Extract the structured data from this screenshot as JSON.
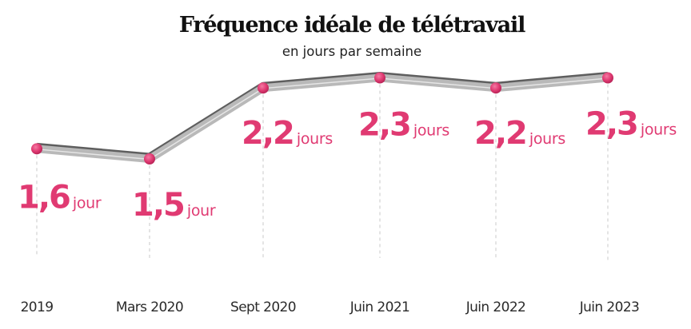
{
  "chart_data": {
    "type": "line",
    "title": "Fréquence idéale de télétravail",
    "subtitle": "en jours par semaine",
    "xlabel": "",
    "ylabel": "",
    "ylim": [
      1.0,
      2.5
    ],
    "grid": false,
    "legend": "none",
    "accent_color": "#e03a72",
    "line_color": "#b9b9b9",
    "categories": [
      "2019",
      "Mars 2020",
      "Sept 2020",
      "Juin 2021",
      "Juin 2022",
      "Juin 2023"
    ],
    "values": [
      1.6,
      1.5,
      2.2,
      2.3,
      2.2,
      2.3
    ],
    "data_labels": [
      {
        "value": "1,6",
        "unit": "jour"
      },
      {
        "value": "1,5",
        "unit": "jour"
      },
      {
        "value": "2,2",
        "unit": "jours"
      },
      {
        "value": "2,3",
        "unit": "jours"
      },
      {
        "value": "2,2",
        "unit": "jours"
      },
      {
        "value": "2,3",
        "unit": "jours"
      }
    ]
  }
}
